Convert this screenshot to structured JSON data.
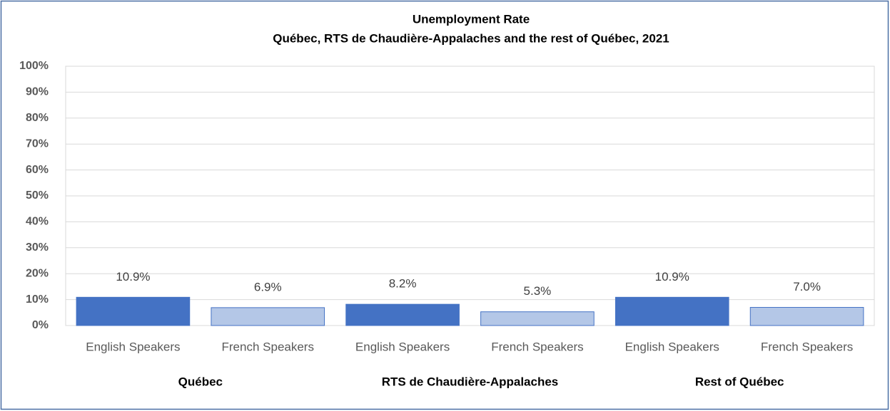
{
  "chart_data": {
    "type": "bar",
    "title": "Unemployment Rate",
    "subtitle": "Québec, RTS de Chaudière-Appalaches  and the rest of Québec, 2021",
    "categories": [
      "English Speakers",
      "French Speakers",
      "English Speakers",
      "French Speakers",
      "English Speakers",
      "French Speakers"
    ],
    "groups": [
      "Québec",
      "RTS de Chaudière-Appalaches",
      "Rest of Québec"
    ],
    "values": [
      10.9,
      6.9,
      8.2,
      5.3,
      10.9,
      7.0
    ],
    "value_labels": [
      "10.9%",
      "6.9%",
      "8.2%",
      "5.3%",
      "10.9%",
      "7.0%"
    ],
    "colors": [
      "#4472c4",
      "#b4c7e7",
      "#4472c4",
      "#b4c7e7",
      "#4472c4",
      "#b4c7e7"
    ],
    "ylim": [
      0,
      100
    ],
    "yticks": [
      {
        "value": 0,
        "label": "0%"
      },
      {
        "value": 10,
        "label": "10%"
      },
      {
        "value": 20,
        "label": "20%"
      },
      {
        "value": 30,
        "label": "30%"
      },
      {
        "value": 40,
        "label": "40%"
      },
      {
        "value": 50,
        "label": "50%"
      },
      {
        "value": 60,
        "label": "60%"
      },
      {
        "value": 70,
        "label": "70%"
      },
      {
        "value": 80,
        "label": "80%"
      },
      {
        "value": 90,
        "label": "90%"
      },
      {
        "value": 100,
        "label": "100%"
      }
    ],
    "grid": true
  }
}
